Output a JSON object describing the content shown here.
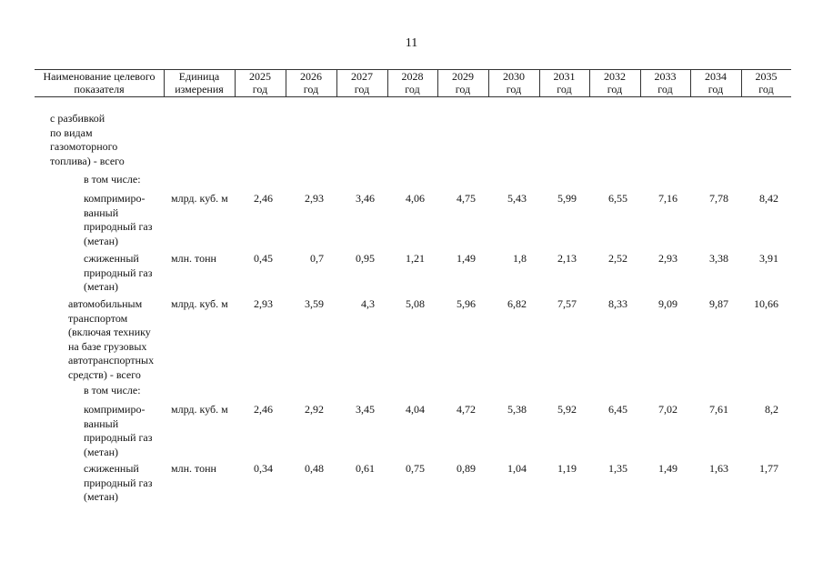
{
  "page_number": "11",
  "table": {
    "header": [
      "Наименование целевого\nпоказателя",
      "Единица\nизмерения",
      "2025\nгод",
      "2026\nгод",
      "2027\nгод",
      "2028\nгод",
      "2029\nгод",
      "2030\nгод",
      "2031\nгод",
      "2032\nгод",
      "2033\nгод",
      "2034\nгод",
      "2035\nгод"
    ],
    "rows": [
      {
        "name": "с разбивкой\nпо видам\nгазомоторного\nтоплива) - всего"
      },
      {
        "name": "в том числе:"
      },
      {
        "name": "компримиро-\nванный\nприродный газ\n(метан)",
        "unit": "млрд. куб. м",
        "values": [
          "2,46",
          "2,93",
          "3,46",
          "4,06",
          "4,75",
          "5,43",
          "5,99",
          "6,55",
          "7,16",
          "7,78",
          "8,42"
        ]
      },
      {
        "name": "сжиженный\nприродный газ\n(метан)",
        "unit": "млн. тонн",
        "values": [
          "0,45",
          "0,7",
          "0,95",
          "1,21",
          "1,49",
          "1,8",
          "2,13",
          "2,52",
          "2,93",
          "3,38",
          "3,91"
        ]
      },
      {
        "name": "автомобильным\nтранспортом\n(включая технику\nна базе грузовых\nавтотранспортных\nсредств) - всего",
        "unit": "млрд. куб. м",
        "values": [
          "2,93",
          "3,59",
          "4,3",
          "5,08",
          "5,96",
          "6,82",
          "7,57",
          "8,33",
          "9,09",
          "9,87",
          "10,66"
        ]
      },
      {
        "name": "в том числе:"
      },
      {
        "name": "компримиро-\nванный\nприродный газ\n(метан)",
        "unit": "млрд. куб. м",
        "values": [
          "2,46",
          "2,92",
          "3,45",
          "4,04",
          "4,72",
          "5,38",
          "5,92",
          "6,45",
          "7,02",
          "7,61",
          "8,2"
        ]
      },
      {
        "name": "сжиженный\nприродный газ\n(метан)",
        "unit": "млн. тонн",
        "values": [
          "0,34",
          "0,48",
          "0,61",
          "0,75",
          "0,89",
          "1,04",
          "1,19",
          "1,35",
          "1,49",
          "1,63",
          "1,77"
        ]
      }
    ]
  }
}
